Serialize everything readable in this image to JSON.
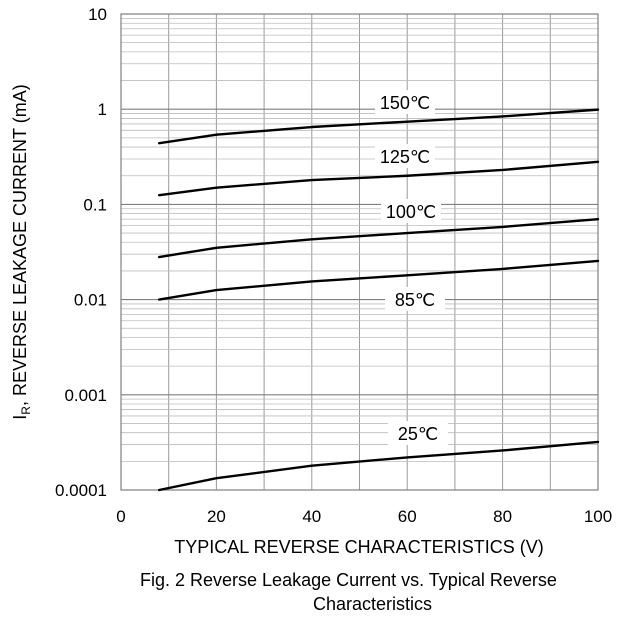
{
  "chart_data": {
    "type": "line",
    "title": "",
    "xlabel": "TYPICAL REVERSE CHARACTERISTICS (V)",
    "ylabel_main": "I",
    "ylabel_sub": "R",
    "ylabel_rest": ", REVERSE LEAKAGE CURRENT (mA)",
    "xlim": [
      0,
      100
    ],
    "ylim": [
      0.0001,
      10
    ],
    "yscale": "log",
    "grid": true,
    "x_ticks": [
      "0",
      "20",
      "40",
      "60",
      "80",
      "100"
    ],
    "y_ticks": [
      "0.0001",
      "0.001",
      "0.01",
      "0.1",
      "1",
      "10"
    ],
    "series": [
      {
        "name": "150℃",
        "x": [
          8,
          20,
          40,
          60,
          80,
          100
        ],
        "y": [
          0.44,
          0.54,
          0.65,
          0.74,
          0.84,
          0.99
        ]
      },
      {
        "name": "125℃",
        "x": [
          8,
          20,
          40,
          60,
          80,
          100
        ],
        "y": [
          0.125,
          0.15,
          0.18,
          0.2,
          0.23,
          0.28
        ]
      },
      {
        "name": "100℃",
        "x": [
          8,
          20,
          40,
          60,
          80,
          100
        ],
        "y": [
          0.028,
          0.035,
          0.043,
          0.05,
          0.058,
          0.07
        ]
      },
      {
        "name": "85℃",
        "x": [
          8,
          20,
          40,
          60,
          80,
          100
        ],
        "y": [
          0.01,
          0.0126,
          0.0155,
          0.018,
          0.021,
          0.0255
        ]
      },
      {
        "name": "25℃",
        "x": [
          8,
          20,
          40,
          60,
          80,
          100
        ],
        "y": [
          0.0001,
          0.000133,
          0.00018,
          0.00022,
          0.00026,
          0.00032
        ]
      }
    ]
  },
  "caption": {
    "line1": "Fig. 2 Reverse Leakage Current vs. Typical Reverse",
    "line2": "Characteristics"
  }
}
